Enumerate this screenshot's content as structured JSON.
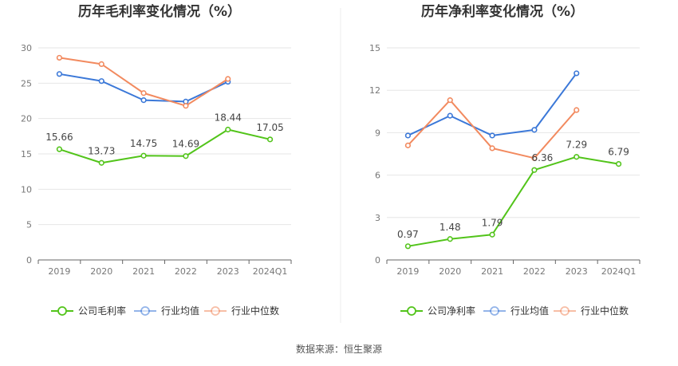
{
  "footer": {
    "source": "数据来源：恒生聚源"
  },
  "colors": {
    "company": "#52c41a",
    "industry_avg": "#3b78d8",
    "industry_median": "#f28a5f"
  },
  "chart_data": [
    {
      "type": "line",
      "title": "历年毛利率变化情况（%）",
      "categories": [
        "2019",
        "2020",
        "2021",
        "2022",
        "2023",
        "2024Q1"
      ],
      "ylim": [
        0,
        30
      ],
      "yticks": [
        0,
        5,
        10,
        15,
        20,
        25,
        30
      ],
      "grid": true,
      "legend_position": "bottom",
      "series": [
        {
          "name": "公司毛利率",
          "key": "company",
          "values": [
            15.66,
            13.73,
            14.75,
            14.69,
            18.44,
            17.05
          ],
          "labels": [
            "15.66",
            "13.73",
            "14.75",
            "14.69",
            "18.44",
            "17.05"
          ]
        },
        {
          "name": "行业均值",
          "key": "industry_avg",
          "values": [
            26.3,
            25.3,
            22.6,
            22.4,
            25.2,
            null
          ]
        },
        {
          "name": "行业中位数",
          "key": "industry_median",
          "values": [
            28.6,
            27.7,
            23.6,
            21.8,
            25.6,
            null
          ]
        }
      ]
    },
    {
      "type": "line",
      "title": "历年净利率变化情况（%）",
      "categories": [
        "2019",
        "2020",
        "2021",
        "2022",
        "2023",
        "2024Q1"
      ],
      "ylim": [
        0,
        15
      ],
      "yticks": [
        0,
        3,
        6,
        9,
        12,
        15
      ],
      "grid": true,
      "legend_position": "bottom",
      "series": [
        {
          "name": "公司净利率",
          "key": "company",
          "values": [
            0.97,
            1.48,
            1.79,
            6.36,
            7.29,
            6.79
          ],
          "labels": [
            "0.97",
            "1.48",
            "1.79",
            "6.36",
            "7.29",
            "6.79"
          ]
        },
        {
          "name": "行业均值",
          "key": "industry_avg",
          "values": [
            8.8,
            10.2,
            8.8,
            9.2,
            13.2,
            null
          ]
        },
        {
          "name": "行业中位数",
          "key": "industry_median",
          "values": [
            8.1,
            11.3,
            7.9,
            7.2,
            10.6,
            null
          ]
        }
      ]
    }
  ]
}
